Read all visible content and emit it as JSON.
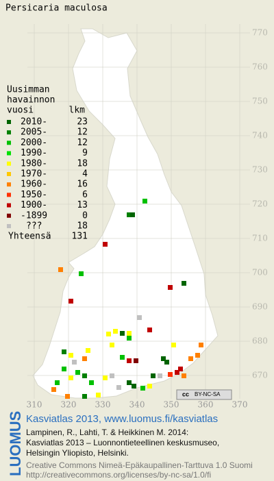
{
  "title": "Persicaria maculosa",
  "legend": {
    "heading": [
      "Uusimman",
      "havainnon",
      "vuosi"
    ],
    "count_heading": "lkm",
    "rows": [
      {
        "label": "2010-",
        "count": 23,
        "color": "#006400"
      },
      {
        "label": "2005-",
        "count": 12,
        "color": "#008000"
      },
      {
        "label": "2000-",
        "count": 12,
        "color": "#00c000"
      },
      {
        "label": "1990-",
        "count": 9,
        "color": "#00e000"
      },
      {
        "label": "1980-",
        "count": 18,
        "color": "#ffff00"
      },
      {
        "label": "1970-",
        "count": 4,
        "color": "#ffc800"
      },
      {
        "label": "1960-",
        "count": 16,
        "color": "#ff8000"
      },
      {
        "label": "1950-",
        "count": 6,
        "color": "#ff3000"
      },
      {
        "label": "1900-",
        "count": 13,
        "color": "#c00000"
      },
      {
        "label": "-1899",
        "count": 0,
        "color": "#800000"
      },
      {
        "label": "???",
        "count": 18,
        "color": "#c0c0c0"
      }
    ],
    "total_label": "Yhteensä",
    "total": 131
  },
  "grid": {
    "y_labels": [
      770,
      760,
      750,
      740,
      730,
      720,
      710,
      700,
      690,
      680,
      670
    ],
    "x_labels": [
      310,
      320,
      330,
      340,
      350,
      360,
      370
    ]
  },
  "license_badge": {
    "cc": "cc",
    "terms": "BY-NC-SA"
  },
  "credits": {
    "logo": "LUOMUS",
    "link": "Kasviatlas 2013, www.luomus.fi/kasviatlas",
    "lines": [
      "Lampinen, R., Lahti, T. & Heikkinen M. 2014:",
      "Kasviatlas 2013 – Luonnontieteellinen keskusmuseo,",
      "Helsingin Yliopisto, Helsinki."
    ],
    "license_lines": [
      "Creative Commons Nimeä-Epäkaupallinen-Tarttuva 1.0 Suomi",
      "http://creativecommons.org/licenses/by-nc-sa/1.0/fi"
    ]
  }
}
